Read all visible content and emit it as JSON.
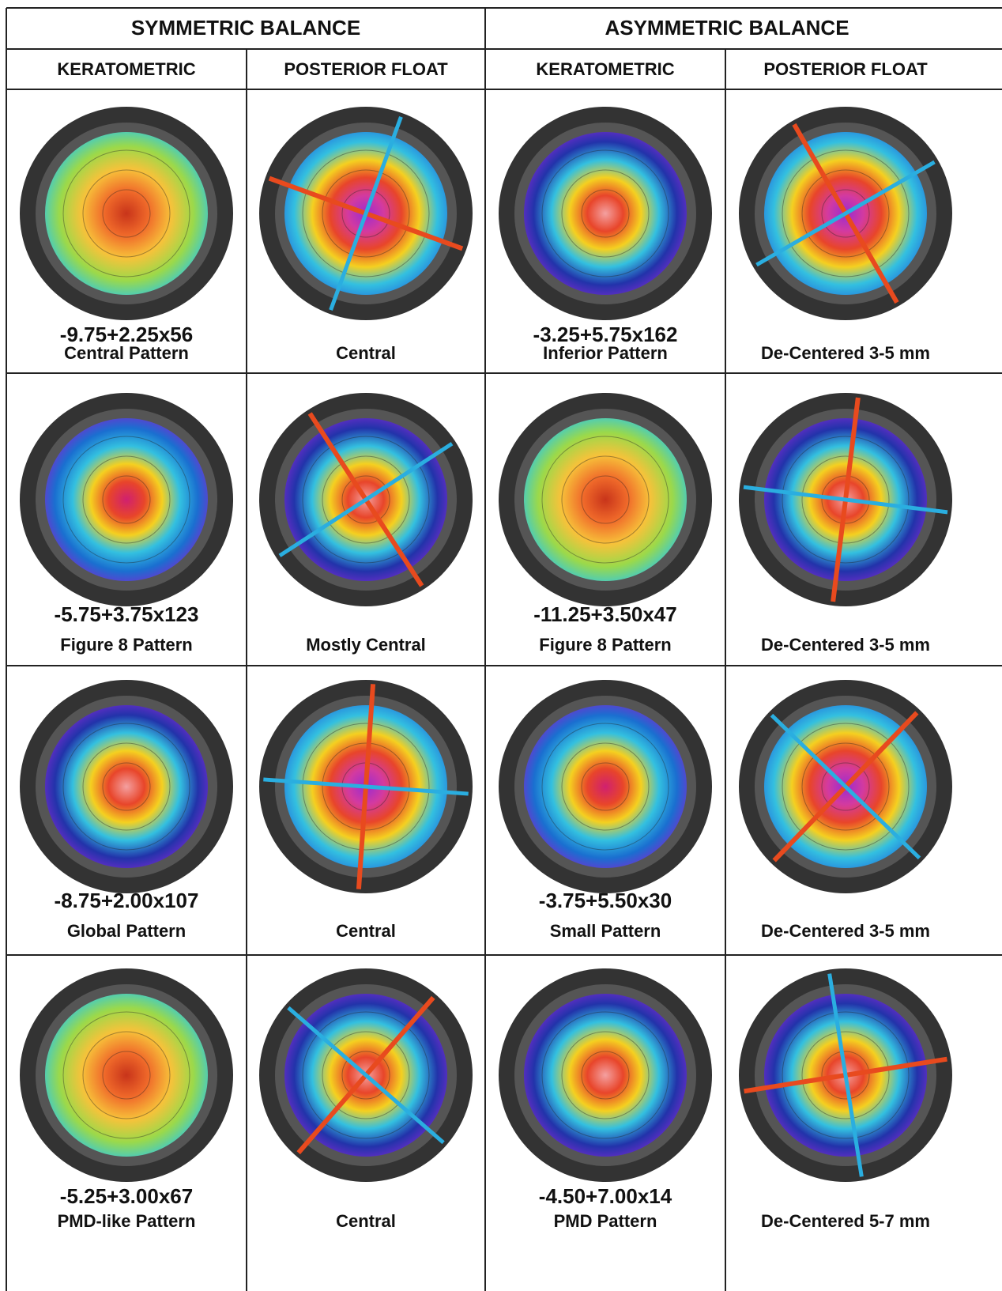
{
  "header": {
    "groups": [
      "SYMMETRIC BALANCE",
      "ASYMMETRIC BALANCE"
    ],
    "columns": [
      "KERATOMETRIC",
      "POSTERIOR FLOAT",
      "KERATOMETRIC",
      "POSTERIOR FLOAT"
    ]
  },
  "rows": [
    {
      "cells": [
        {
          "refraction": "-9.75+2.25x56",
          "pattern": "Central Pattern"
        },
        {
          "pattern": "Central"
        },
        {
          "refraction": "-3.25+5.75x162",
          "pattern": "Inferior Pattern"
        },
        {
          "pattern": "De-Centered 3-5 mm"
        }
      ]
    },
    {
      "cells": [
        {
          "refraction": "-5.75+3.75x123",
          "pattern": "Figure 8 Pattern"
        },
        {
          "pattern": "Mostly Central"
        },
        {
          "refraction": "-11.25+3.50x47",
          "pattern": "Figure 8 Pattern"
        },
        {
          "pattern": "De-Centered 3-5 mm"
        }
      ]
    },
    {
      "cells": [
        {
          "refraction": "-8.75+2.00x107",
          "pattern": "Global Pattern"
        },
        {
          "pattern": "Central"
        },
        {
          "refraction": "-3.75+5.50x30",
          "pattern": "Small Pattern"
        },
        {
          "pattern": "De-Centered 3-5 mm"
        }
      ]
    },
    {
      "cells": [
        {
          "refraction": "-5.25+3.00x67",
          "pattern": "PMD-like Pattern"
        },
        {
          "pattern": "Central"
        },
        {
          "refraction": "-4.50+7.00x14",
          "pattern": "PMD Pattern"
        },
        {
          "pattern": "De-Centered 5-7 mm"
        }
      ]
    }
  ]
}
